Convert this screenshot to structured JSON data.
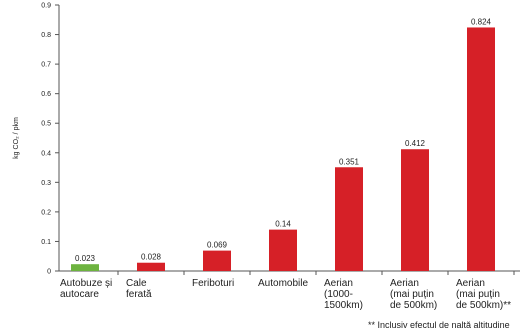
{
  "chart_data": {
    "type": "bar",
    "title": "",
    "xlabel": "",
    "ylabel": "kg CO₂ / pkm",
    "ylim": [
      0,
      0.9
    ],
    "yticks": [
      "0",
      "0.1",
      "0.2",
      "0.3",
      "0.4",
      "0.5",
      "0.6",
      "0.7",
      "0.8",
      "0.9"
    ],
    "categories": [
      "Autobuze și\nautocare",
      "Cale\nferată",
      "Feriboturi",
      "Automobile",
      "Aerian\n(1000-\n1500km)",
      "Aerian\n(mai puțin\nde 500km)",
      "Aerian\n(mai puțin\nde 500km)**"
    ],
    "values": [
      0.023,
      0.028,
      0.069,
      0.14,
      0.351,
      0.412,
      0.824
    ],
    "value_labels": [
      "0.023",
      "0.028",
      "0.069",
      "0.14",
      "0.351",
      "0.412",
      "0.824"
    ],
    "bar_colors": [
      "#6db33f",
      "#d62027",
      "#d62027",
      "#d62027",
      "#d62027",
      "#d62027",
      "#d62027"
    ],
    "grid": false,
    "footnote": "**  Inclusiv efectul de  naltă altitudine"
  }
}
